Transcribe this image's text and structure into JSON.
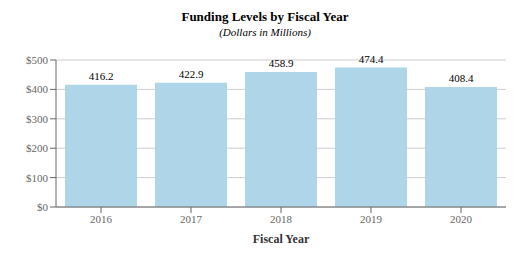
{
  "chart_data": {
    "type": "bar",
    "title": "Funding Levels by Fiscal Year",
    "subtitle": "(Dollars in Millions)",
    "xlabel": "Fiscal Year",
    "categories": [
      "2016",
      "2017",
      "2018",
      "2019",
      "2020"
    ],
    "values": [
      416.2,
      422.9,
      458.9,
      474.4,
      408.4
    ],
    "color": "#aed6e8",
    "ylim": [
      0,
      500
    ],
    "yticks": [
      {
        "value": 0,
        "label": "$0"
      },
      {
        "value": 100,
        "label": "$100"
      },
      {
        "value": 200,
        "label": "$200"
      },
      {
        "value": 300,
        "label": "$300"
      },
      {
        "value": 400,
        "label": "$400"
      },
      {
        "value": 500,
        "label": "$500"
      }
    ],
    "grid": true,
    "data_labels": true
  }
}
